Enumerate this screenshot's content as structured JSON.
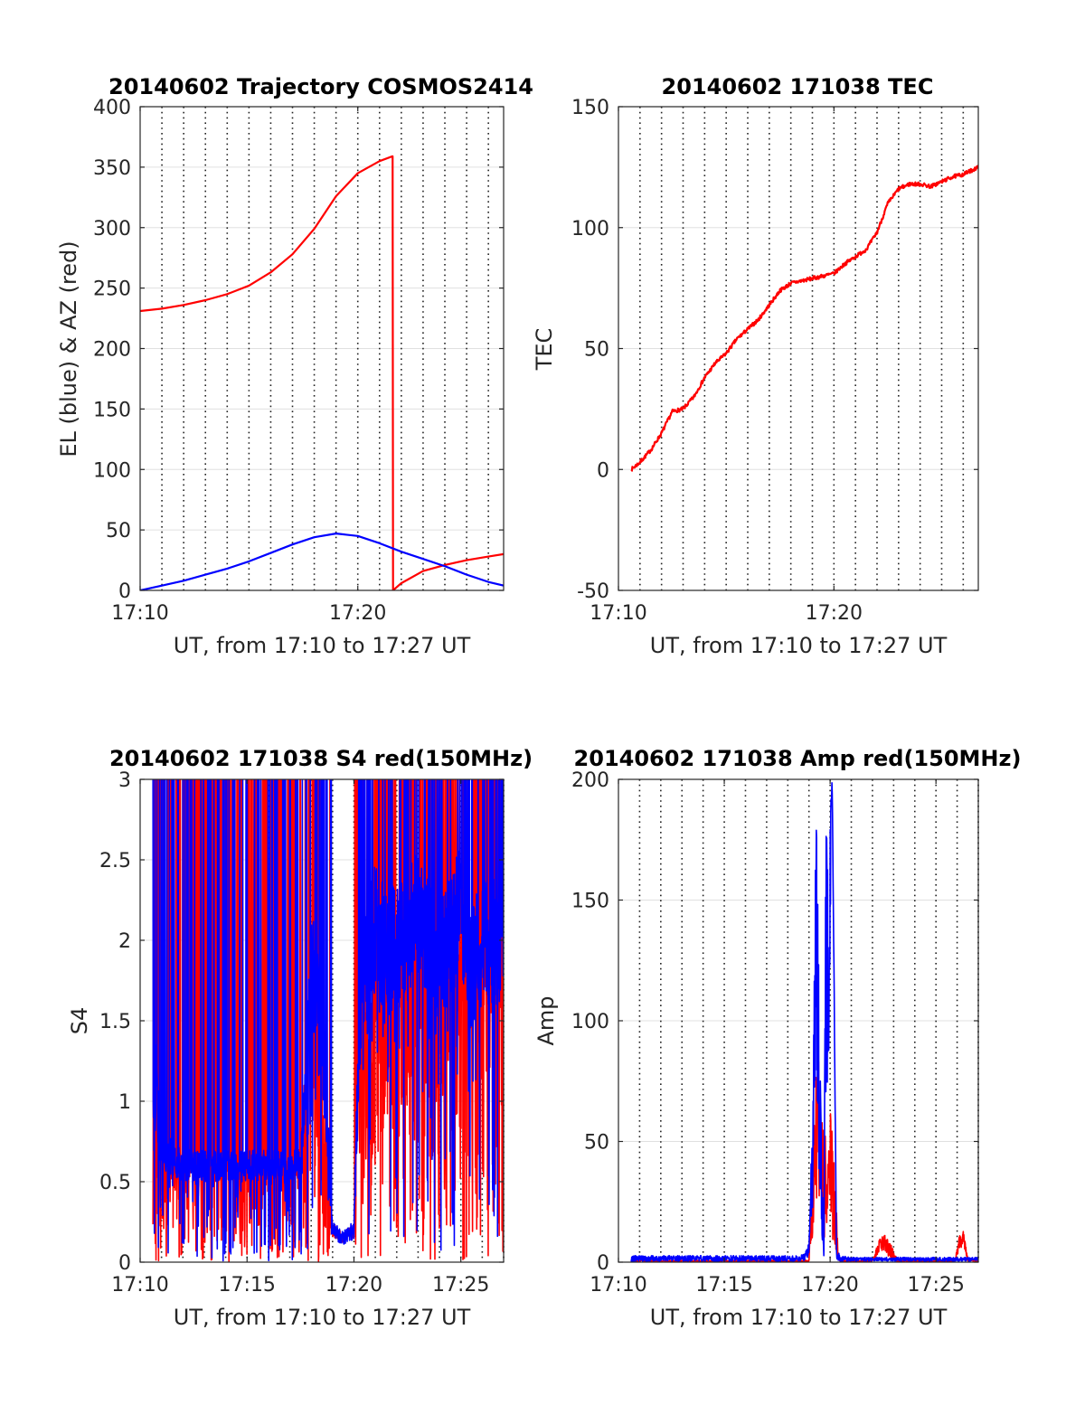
{
  "chart_data": [
    {
      "type": "line",
      "title": "20140602 Trajectory COSMOS2414",
      "xlabel": "UT, from 17:10 to 17:27 UT",
      "ylabel": "EL (blue) & AZ (red)",
      "xlim": [
        0,
        16.7
      ],
      "ylim": [
        0,
        400
      ],
      "yticks": [
        0,
        50,
        100,
        150,
        200,
        250,
        300,
        350,
        400
      ],
      "xticks": [
        {
          "v": 0,
          "label": "17:10"
        },
        {
          "v": 10,
          "label": "17:20"
        }
      ],
      "grid": true,
      "series": [
        {
          "color": "#ff0000",
          "kind": "smooth",
          "x": [
            0,
            1,
            2,
            3,
            4,
            5,
            6,
            7,
            8,
            9,
            10,
            11,
            11.6,
            11.62,
            12,
            13,
            14,
            15,
            16,
            16.7
          ],
          "y": [
            231,
            233,
            236,
            240,
            245,
            252,
            263,
            278,
            299,
            326,
            345,
            355,
            359,
            0,
            6,
            16,
            21,
            25,
            28,
            30
          ]
        },
        {
          "color": "#0000ff",
          "kind": "smooth",
          "x": [
            0,
            1,
            2,
            3,
            4,
            5,
            6,
            7,
            8,
            9,
            10,
            11,
            12,
            13,
            14,
            15,
            16,
            16.7
          ],
          "y": [
            0,
            4,
            8,
            13,
            18,
            24,
            31,
            38,
            44,
            47,
            45,
            39,
            32,
            26,
            20,
            13,
            7,
            4
          ]
        }
      ]
    },
    {
      "type": "line",
      "title": "20140602 171038 TEC",
      "xlabel": "UT, from 17:10 to 17:27 UT",
      "ylabel": "TEC",
      "xlim": [
        0,
        16.7
      ],
      "ylim": [
        -50,
        150
      ],
      "yticks": [
        -50,
        0,
        50,
        100,
        150
      ],
      "xticks": [
        {
          "v": 0,
          "label": "17:10"
        },
        {
          "v": 10,
          "label": "17:20"
        }
      ],
      "grid": true,
      "series": [
        {
          "color": "#ff0000",
          "kind": "noisy",
          "noise": 0.8,
          "seed": 7,
          "x": [
            0.6,
            1,
            1.5,
            2,
            2.5,
            3,
            3.5,
            4,
            4.5,
            5,
            5.5,
            6,
            6.5,
            7,
            7.5,
            8,
            8.5,
            9,
            9.5,
            10,
            10.5,
            11,
            11.5,
            12,
            12.5,
            13,
            13.5,
            14,
            14.5,
            15,
            15.5,
            16,
            16.7
          ],
          "y": [
            0,
            3,
            8,
            15,
            24,
            25,
            30,
            38,
            44,
            48,
            54,
            58,
            62,
            68,
            74,
            77,
            78,
            79,
            80,
            81,
            85,
            88,
            91,
            98,
            110,
            116,
            118,
            118,
            117,
            119,
            121,
            122,
            125
          ]
        }
      ]
    },
    {
      "type": "line",
      "title": "20140602 171038 S4 red(150MHz)",
      "xlabel": "UT, from 17:10 to 17:27 UT",
      "ylabel": "S4",
      "xlim": [
        0,
        17
      ],
      "ylim": [
        0,
        3
      ],
      "yticks": [
        0,
        0.5,
        1,
        1.5,
        2,
        2.5,
        3
      ],
      "xticks": [
        {
          "v": 0,
          "label": "17:10"
        },
        {
          "v": 5,
          "label": "17:15"
        },
        {
          "v": 10,
          "label": "17:20"
        },
        {
          "v": 15,
          "label": "17:25"
        }
      ],
      "grid": true,
      "series": [
        {
          "color": "#ff0000",
          "kind": "spiky",
          "seed": 11,
          "pts": 1500,
          "spike": 0.55,
          "x": [
            0.6,
            1,
            2,
            3,
            4,
            5,
            6,
            7,
            7.5,
            8,
            8.3,
            8.6,
            9,
            9.5,
            10,
            10.3,
            10.7,
            11,
            11.5,
            12,
            12.5,
            13,
            13.5,
            14,
            14.5,
            15,
            15.5,
            16,
            16.5,
            17
          ],
          "y": [
            0.6,
            0.6,
            0.6,
            0.6,
            0.6,
            0.6,
            0.6,
            0.6,
            0.6,
            1.6,
            1.3,
            0.9,
            0.2,
            0.15,
            0.2,
            1.5,
            1.2,
            1.6,
            1.3,
            1.4,
            1.2,
            1.7,
            1.5,
            1.3,
            1.6,
            1.7,
            1.7,
            1.9,
            1.8,
            1.9
          ],
          "amp": [
            0.1,
            0.1,
            0.1,
            0.1,
            0.1,
            0.1,
            0.1,
            0.1,
            0.1,
            0.3,
            0.25,
            0.3,
            0.05,
            0.03,
            0.05,
            0.3,
            0.3,
            0.3,
            0.3,
            0.3,
            0.3,
            0.3,
            0.3,
            0.3,
            0.3,
            0.3,
            0.3,
            0.3,
            0.3,
            0.3
          ]
        },
        {
          "color": "#0000ff",
          "kind": "spiky",
          "seed": 23,
          "pts": 1500,
          "spike": 0.22,
          "x": [
            0.6,
            1,
            2,
            3,
            4,
            5,
            6,
            7,
            7.5,
            8,
            8.3,
            8.6,
            9,
            9.5,
            10,
            10.3,
            10.7,
            11,
            11.5,
            12,
            12.5,
            13,
            13.5,
            14,
            14.5,
            15,
            15.5,
            16,
            16.5,
            17
          ],
          "y": [
            1.2,
            0.7,
            0.6,
            0.6,
            0.6,
            0.6,
            0.6,
            0.6,
            0.6,
            1.8,
            1.6,
            1.3,
            0.2,
            0.15,
            0.2,
            1.7,
            1.9,
            2.1,
            1.9,
            2.0,
            2.0,
            2.2,
            2.0,
            1.9,
            2.0,
            2.2,
            1.8,
            2.0,
            2.0,
            2.0
          ],
          "amp": [
            0.5,
            0.12,
            0.1,
            0.1,
            0.1,
            0.1,
            0.1,
            0.1,
            0.1,
            0.4,
            0.4,
            0.4,
            0.06,
            0.04,
            0.06,
            0.4,
            0.4,
            0.4,
            0.4,
            0.4,
            0.4,
            0.4,
            0.4,
            0.4,
            0.4,
            0.4,
            0.4,
            0.4,
            0.4,
            0.4
          ]
        }
      ]
    },
    {
      "type": "line",
      "title": "20140602 171038 Amp red(150MHz)",
      "xlabel": "UT, from 17:10 to 17:27 UT",
      "ylabel": "Amp",
      "xlim": [
        0,
        17
      ],
      "ylim": [
        0,
        200
      ],
      "yticks": [
        0,
        50,
        100,
        150,
        200
      ],
      "xticks": [
        {
          "v": 0,
          "label": "17:10"
        },
        {
          "v": 5,
          "label": "17:15"
        },
        {
          "v": 10,
          "label": "17:20"
        },
        {
          "v": 15,
          "label": "17:25"
        }
      ],
      "grid": true,
      "series": [
        {
          "color": "#ff0000",
          "kind": "spiky",
          "seed": 31,
          "pts": 1200,
          "spike": 0,
          "x": [
            0.6,
            9,
            9.2,
            9.4,
            9.6,
            9.8,
            10,
            10.2,
            10.4,
            10.6,
            12,
            12.3,
            12.6,
            12.9,
            13.2,
            15.9,
            16.1,
            16.3,
            16.5,
            17
          ],
          "y": [
            0.5,
            0.5,
            30,
            60,
            50,
            30,
            40,
            25,
            1,
            0.5,
            0.5,
            6,
            8,
            4,
            0.5,
            0.5,
            8,
            10,
            1,
            0.5
          ],
          "amp": [
            0.3,
            0.3,
            20,
            30,
            30,
            25,
            25,
            20,
            0.3,
            0.3,
            0.3,
            3,
            4,
            3,
            0.3,
            0.3,
            3,
            3,
            0.5,
            0.3
          ]
        },
        {
          "color": "#0000ff",
          "kind": "spiky",
          "seed": 43,
          "pts": 1200,
          "spike": 0,
          "x": [
            0.6,
            8.5,
            8.8,
            9.0,
            9.2,
            9.35,
            9.5,
            9.7,
            9.8,
            9.95,
            10.1,
            10.3,
            10.5,
            11,
            17
          ],
          "y": [
            1.5,
            1.5,
            2,
            5,
            60,
            140,
            60,
            1,
            120,
            130,
            200,
            3,
            1.5,
            1.2,
            1.2
          ],
          "amp": [
            1.2,
            1.2,
            1.5,
            3,
            40,
            50,
            40,
            0.5,
            60,
            40,
            5,
            2,
            1.2,
            0.8,
            0.8
          ]
        }
      ]
    }
  ]
}
